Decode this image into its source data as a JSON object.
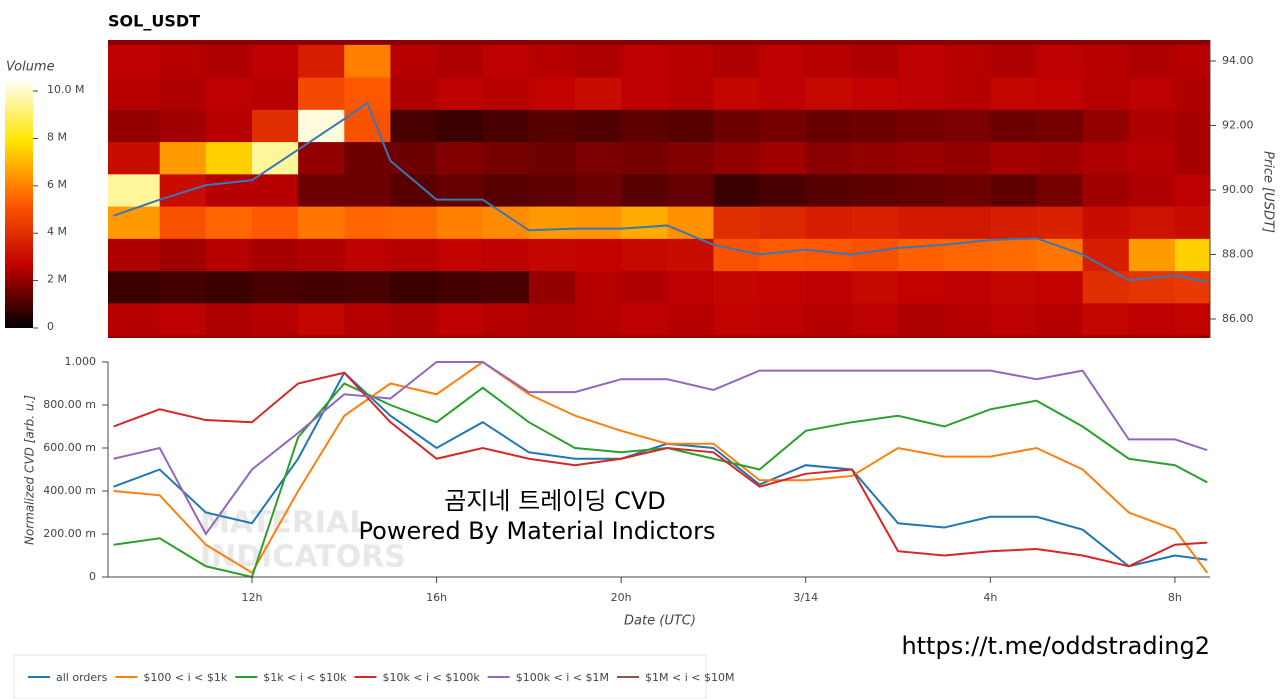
{
  "chart_data": [
    {
      "type": "heatmap",
      "title": "SOL_USDT",
      "x_edges": [
        8.88,
        10,
        11,
        12,
        13,
        14,
        15,
        16,
        17,
        18,
        19,
        20,
        21,
        22,
        23,
        24,
        25,
        26,
        27,
        28,
        29,
        30,
        31,
        32,
        32.76
      ],
      "y_edges": [
        85.5,
        86.5,
        87.5,
        88.5,
        89.5,
        90.5,
        91.5,
        92.5,
        93.5,
        94.5
      ],
      "z": [
        [
          2.5,
          2.6,
          2.4,
          2.5,
          2.8,
          2.5,
          2.4,
          2.6,
          2.5,
          2.4,
          2.5,
          2.6,
          2.5,
          2.7,
          2.6,
          2.5,
          2.6,
          2.4,
          2.5,
          2.6,
          2.5,
          2.8,
          2.6,
          2.7
        ],
        [
          0.8,
          0.9,
          0.8,
          1,
          0.9,
          1,
          0.8,
          0.9,
          1,
          2,
          2.5,
          2.4,
          2.6,
          2.8,
          2.7,
          2.6,
          2.9,
          2.7,
          2.6,
          2.8,
          2.7,
          4,
          4.2,
          4.3
        ],
        [
          2.4,
          2.2,
          2.5,
          2.3,
          2.4,
          2.6,
          2.5,
          2.7,
          2.6,
          2.8,
          2.7,
          2.9,
          3,
          5,
          5.3,
          5.2,
          5,
          5.4,
          5.5,
          5.6,
          5.8,
          3.5,
          6.5,
          7.5
        ],
        [
          6.5,
          5,
          5.5,
          5.2,
          5.8,
          5.5,
          5.6,
          6,
          6.2,
          6.5,
          6.4,
          6.8,
          6.3,
          4,
          3.8,
          3.5,
          3.6,
          3.4,
          3.3,
          3.5,
          3.6,
          3,
          3.2,
          3
        ],
        [
          9.5,
          3,
          2.5,
          2.5,
          1.5,
          1.5,
          1.2,
          1.4,
          1.2,
          1.3,
          1.5,
          1.2,
          1.4,
          0.8,
          1,
          1.2,
          1.3,
          1.4,
          1.5,
          1.3,
          1.6,
          2.2,
          2.4,
          2.6
        ],
        [
          3,
          6.5,
          7.5,
          9.5,
          2,
          1.5,
          1.5,
          1.8,
          1.6,
          1.5,
          1.7,
          1.6,
          1.8,
          2,
          2.2,
          1.9,
          2,
          2.1,
          2,
          2.3,
          2.2,
          2.4,
          2.5,
          2.3
        ],
        [
          2,
          2.2,
          2.5,
          4,
          10.2,
          5,
          1,
          0.8,
          1,
          1.2,
          1.1,
          1.3,
          1.2,
          1.5,
          1.6,
          1.4,
          1.5,
          1.6,
          1.7,
          1.5,
          1.6,
          2,
          2.4,
          2.3
        ],
        [
          2.5,
          2.4,
          2.6,
          2.5,
          4.8,
          5.2,
          2.4,
          2.6,
          2.5,
          2.7,
          3,
          2.6,
          2.5,
          2.8,
          2.6,
          2.9,
          2.7,
          2.6,
          2.5,
          2.8,
          2.7,
          2.5,
          2.6,
          2.4
        ],
        [
          2.6,
          2.5,
          2.4,
          2.6,
          3.5,
          6,
          2.5,
          2.4,
          2.6,
          2.5,
          2.4,
          2.6,
          2.5,
          2.4,
          2.6,
          2.5,
          2.4,
          2.6,
          2.5,
          2.4,
          2.6,
          2.5,
          2.4,
          2.5
        ]
      ],
      "colorscale": [
        "#000000",
        "#c00000",
        "#ff5a00",
        "#ffe600",
        "#ffffff"
      ],
      "clim": [
        0,
        10.55
      ],
      "colorbar_title": "Volume",
      "colorbar_ticks": [
        0,
        {
          "value": 2,
          "label": "2 M"
        },
        {
          "value": 4,
          "label": "4 M"
        },
        {
          "value": 6,
          "label": "6 M"
        },
        {
          "value": 8,
          "label": "8 M"
        },
        {
          "value": 10,
          "label": "10.0 M"
        }
      ],
      "xlim": [
        8.88,
        32.76
      ],
      "ylim": [
        85.41,
        94.65
      ],
      "yticks": [
        {
          "value": 86,
          "label": "86.00"
        },
        {
          "value": 88,
          "label": "88.00"
        },
        {
          "value": 90,
          "label": "90.00"
        },
        {
          "value": 92,
          "label": "92.00"
        },
        {
          "value": 94,
          "label": "94.00"
        }
      ],
      "y_label": "Price [USDT]",
      "price": {
        "color": "#3a78b5",
        "x": [
          9,
          10,
          11,
          12,
          13,
          14,
          14.5,
          15,
          16,
          17,
          18,
          19,
          20,
          21,
          22,
          23,
          24,
          25,
          26,
          27,
          28,
          29,
          30,
          31,
          32,
          32.7
        ],
        "values": [
          89.2,
          89.7,
          90.15,
          90.3,
          91.25,
          92.2,
          92.7,
          90.9,
          89.7,
          89.7,
          88.75,
          88.8,
          88.8,
          88.9,
          88.3,
          88.0,
          88.15,
          88.0,
          88.2,
          88.3,
          88.45,
          88.5,
          88.0,
          87.2,
          87.35,
          87.15
        ]
      }
    },
    {
      "type": "line",
      "x_label": "Date (UTC)",
      "y_label": "Normalized CVD [arb. u.]",
      "xlim": [
        8.88,
        32.76
      ],
      "xticks": [
        {
          "value": 12,
          "label": "12h"
        },
        {
          "value": 16,
          "label": "16h"
        },
        {
          "value": 20,
          "label": "20h"
        },
        {
          "value": 24,
          "label": "3/14"
        },
        {
          "value": 28,
          "label": "4h"
        },
        {
          "value": 32,
          "label": "8h"
        }
      ],
      "ylim": [
        0,
        1
      ],
      "yticks": [
        0,
        {
          "value": 0.2,
          "label": "200.00 m"
        },
        {
          "value": 0.4,
          "label": "400.00 m"
        },
        {
          "value": 0.6,
          "label": "600.00 m"
        },
        {
          "value": 0.8,
          "label": "800.00 m"
        },
        {
          "value": 1,
          "label": "1.000"
        }
      ],
      "x": [
        9,
        10,
        11,
        12,
        13,
        14,
        15,
        16,
        17,
        18,
        19,
        20,
        21,
        22,
        23,
        24,
        25,
        26,
        27,
        28,
        29,
        30,
        31,
        32,
        32.7
      ],
      "series": [
        {
          "name": "all orders",
          "color": "#1f77b4",
          "values": [
            0.42,
            0.5,
            0.3,
            0.25,
            0.55,
            0.95,
            0.75,
            0.6,
            0.72,
            0.58,
            0.55,
            0.55,
            0.62,
            0.6,
            0.43,
            0.52,
            0.5,
            0.25,
            0.23,
            0.28,
            0.28,
            0.22,
            0.05,
            0.1,
            0.08
          ]
        },
        {
          "name": "$100 < i < $1k",
          "color": "#ff7f0e",
          "values": [
            0.4,
            0.38,
            0.15,
            0.02,
            0.4,
            0.75,
            0.9,
            0.85,
            1.0,
            0.85,
            0.75,
            0.68,
            0.62,
            0.62,
            0.45,
            0.45,
            0.47,
            0.6,
            0.56,
            0.56,
            0.6,
            0.5,
            0.3,
            0.22,
            0.02
          ]
        },
        {
          "name": "$1k < i < $10k",
          "color": "#2ca02c",
          "values": [
            0.15,
            0.18,
            0.05,
            0.0,
            0.65,
            0.9,
            0.8,
            0.72,
            0.88,
            0.72,
            0.6,
            0.58,
            0.6,
            0.55,
            0.5,
            0.68,
            0.72,
            0.75,
            0.7,
            0.78,
            0.82,
            0.7,
            0.55,
            0.52,
            0.44
          ]
        },
        {
          "name": "$10k < i < $100k",
          "color": "#d62728",
          "values": [
            0.7,
            0.78,
            0.73,
            0.72,
            0.9,
            0.95,
            0.72,
            0.55,
            0.6,
            0.55,
            0.52,
            0.55,
            0.6,
            0.58,
            0.42,
            0.48,
            0.5,
            0.12,
            0.1,
            0.12,
            0.13,
            0.1,
            0.05,
            0.15,
            0.16
          ]
        },
        {
          "name": "$100k < i < $1M",
          "color": "#9467bd",
          "values": [
            0.55,
            0.6,
            0.2,
            0.5,
            0.67,
            0.85,
            0.83,
            1.0,
            1.0,
            0.86,
            0.86,
            0.92,
            0.92,
            0.87,
            0.96,
            0.96,
            0.96,
            0.96,
            0.96,
            0.96,
            0.92,
            0.96,
            0.64,
            0.64,
            0.59
          ]
        },
        {
          "name": "$1M < i < $10M",
          "color": "#8c564b",
          "values": [
            null,
            null,
            null,
            null,
            null,
            null,
            null,
            null,
            null,
            null,
            null,
            null,
            null,
            null,
            null,
            null,
            null,
            null,
            null,
            null,
            null,
            null,
            null,
            null,
            null
          ]
        }
      ],
      "annotations": [
        "곰지네 트레이딩 CVD",
        "Powered By Material Indictors"
      ],
      "watermark": [
        "MATERIAL",
        "INDICATORS"
      ]
    }
  ],
  "footer_link": "https://t.me/oddstrading2"
}
